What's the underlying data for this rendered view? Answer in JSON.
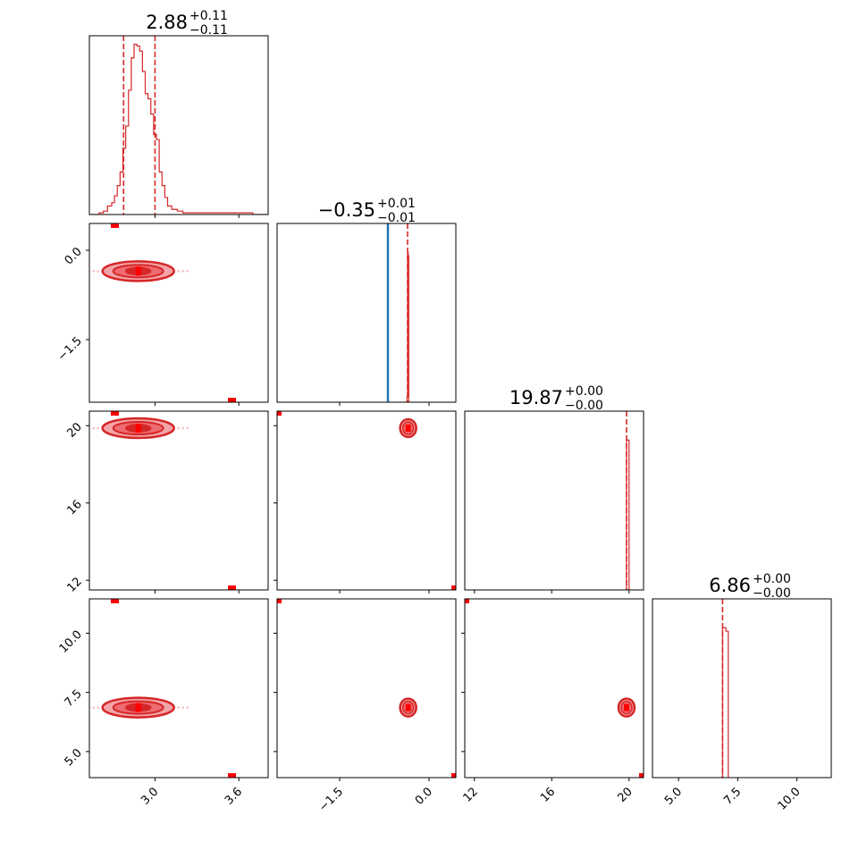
{
  "chart_data": {
    "type": "corner",
    "colors": {
      "primary": "#d62728",
      "marker": "#ff0000",
      "truth": "#1f77b4",
      "fill_light": "#f2a5a8"
    },
    "params": [
      {
        "range": [
          2.53,
          3.81
        ],
        "ticks": [
          {
            "v": 3.0,
            "label": "3.0"
          },
          {
            "v": 3.6,
            "label": "3.6"
          }
        ],
        "median": 2.88,
        "plus": "+0.11",
        "minus": "−0.11",
        "title_main": "2.88",
        "title_plus": "+0.11",
        "title_minus": "−0.11",
        "quantiles": [
          2.775,
          3.0
        ],
        "outlier": 2.71
      },
      {
        "range": [
          -2.55,
          0.45
        ],
        "ticks": [
          {
            "v": -1.5,
            "label": "−1.5"
          },
          {
            "v": 0.0,
            "label": "0.0"
          }
        ],
        "median": -0.35,
        "plus": "+0.01",
        "minus": "−0.01",
        "title_main": "−0.35",
        "title_plus": "+0.01",
        "title_minus": "−0.01",
        "quantiles": [
          -0.36
        ],
        "truth": -0.69,
        "outlier_top": 0.45,
        "outlier_low": -2.55
      },
      {
        "range": [
          11.5,
          20.75
        ],
        "ticks": [
          {
            "v": 12,
            "label": "12"
          },
          {
            "v": 16,
            "label": "16"
          },
          {
            "v": 20,
            "label": "20"
          }
        ],
        "median": 19.87,
        "title_main": "19.87",
        "title_plus": "+0.00",
        "title_minus": "−0.00",
        "quantiles": [
          19.87
        ],
        "outlier_top": 20.7,
        "outlier_low": 11.6
      },
      {
        "range": [
          3.9,
          11.45
        ],
        "ticks": [
          {
            "v": 5.0,
            "label": "5.0"
          },
          {
            "v": 7.5,
            "label": "7.5"
          },
          {
            "v": 10.0,
            "label": "10.0"
          }
        ],
        "median": 6.86,
        "title_main": "6.86",
        "title_plus": "+0.00",
        "title_minus": "−0.00",
        "quantiles": [
          6.86
        ],
        "outlier_top": 11.4,
        "outlier_low": 3.95
      }
    ],
    "hist1d": [
      {
        "x": [
          2.53,
          2.6,
          2.63,
          2.66,
          2.69,
          2.71,
          2.73,
          2.75,
          2.77,
          2.79,
          2.81,
          2.83,
          2.85,
          2.87,
          2.89,
          2.91,
          2.93,
          2.95,
          2.97,
          2.99,
          3.01,
          3.03,
          3.05,
          3.07,
          3.09,
          3.12,
          3.16,
          3.2,
          3.28,
          3.4,
          3.6,
          3.7,
          3.81
        ],
        "y": [
          0.0,
          0.01,
          0.02,
          0.05,
          0.07,
          0.11,
          0.17,
          0.25,
          0.39,
          0.52,
          0.73,
          0.92,
          1.0,
          0.99,
          0.96,
          0.84,
          0.71,
          0.68,
          0.59,
          0.47,
          0.44,
          0.25,
          0.17,
          0.1,
          0.05,
          0.03,
          0.02,
          0.01,
          0.01,
          0.01,
          0.01,
          0.0,
          0.0
        ]
      },
      {
        "x": [
          -0.4,
          -0.37,
          -0.36,
          -0.35,
          -0.34,
          -0.32
        ],
        "y": [
          0.0,
          0.03,
          0.88,
          0.86,
          0.0,
          0.0
        ]
      },
      {
        "x": [
          19.83,
          19.87,
          19.95,
          20.0,
          20.05
        ],
        "y": [
          0.0,
          0.88,
          0.88,
          0.0,
          0.0
        ]
      },
      {
        "x": [
          6.8,
          6.86,
          7.0,
          7.1
        ],
        "y": [
          0.0,
          0.88,
          0.86,
          0.0
        ]
      }
    ]
  }
}
